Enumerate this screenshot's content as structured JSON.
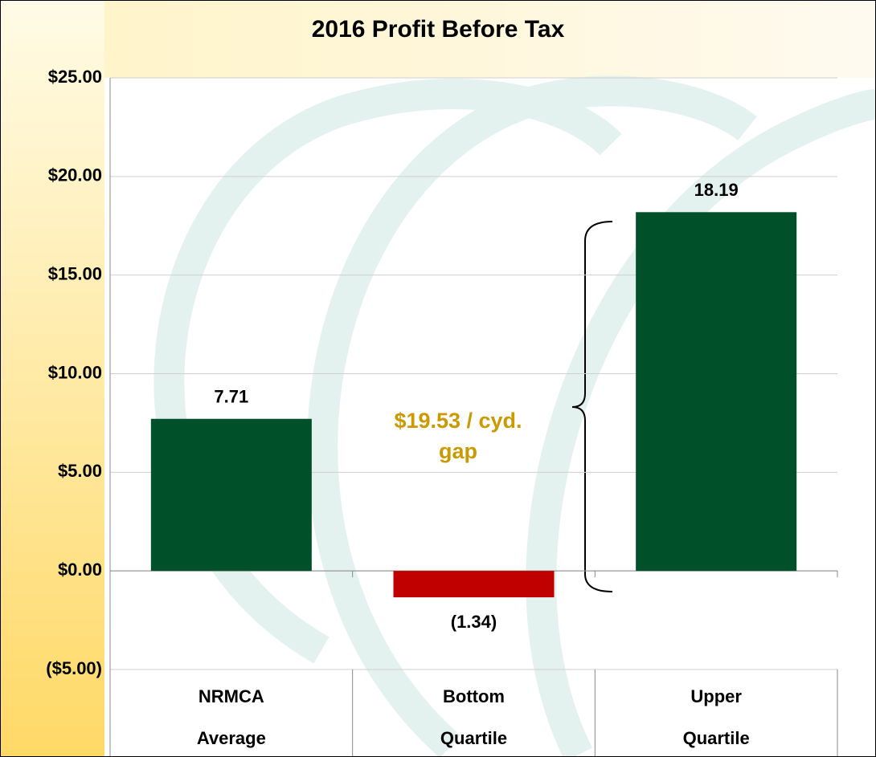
{
  "chart_data": {
    "type": "bar",
    "title": "2016 Profit Before Tax",
    "categories": [
      "NRMCA\nAverage",
      "Bottom\nQuartile",
      "Upper\nQuartile"
    ],
    "values": [
      7.71,
      -1.34,
      18.19
    ],
    "value_labels": [
      "7.71",
      "(1.34)",
      "18.19"
    ],
    "colors": [
      "#00502a",
      "#c00000",
      "#00502a"
    ],
    "ylim": [
      -5,
      25
    ],
    "yticks": [
      {
        "value": -5,
        "label": "($5.00)"
      },
      {
        "value": 0,
        "label": "$0.00"
      },
      {
        "value": 5,
        "label": "$5.00"
      },
      {
        "value": 10,
        "label": "$10.00"
      },
      {
        "value": 15,
        "label": "$15.00"
      },
      {
        "value": 20,
        "label": "$20.00"
      },
      {
        "value": 25,
        "label": "$25.00"
      }
    ],
    "grid": true,
    "annotation": "$19.53 / cyd.\ngap"
  }
}
